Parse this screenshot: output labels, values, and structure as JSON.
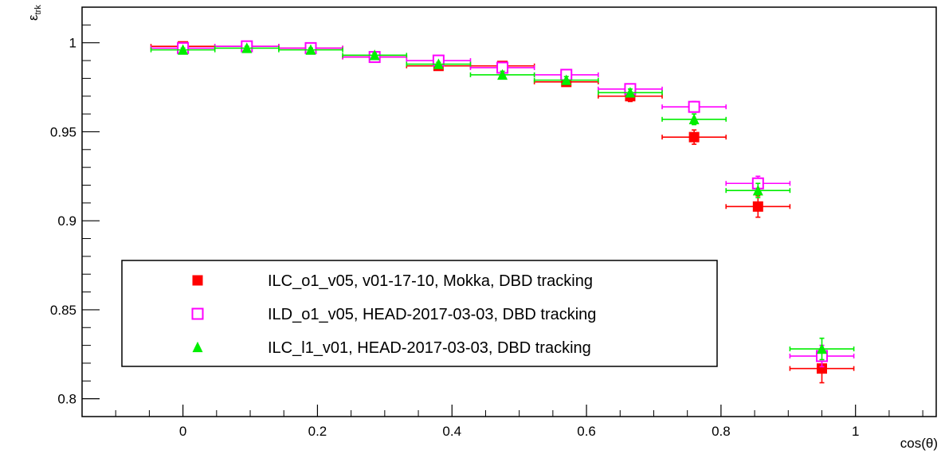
{
  "chart_data": {
    "type": "scatter",
    "title": "",
    "xlabel": "cos(θ)",
    "ylabel": "ε",
    "ylabel_sub": "trk",
    "xlim": [
      -0.15,
      1.12
    ],
    "ylim": [
      0.79,
      1.02
    ],
    "x_ticks": [
      0,
      0.2,
      0.4,
      0.6,
      0.8,
      1
    ],
    "x_tick_labels": [
      "0",
      "0.2",
      "0.4",
      "0.6",
      "0.8",
      "1"
    ],
    "y_ticks": [
      0.8,
      0.85,
      0.9,
      0.95,
      1
    ],
    "y_tick_labels": [
      "0.8",
      "0.85",
      "0.9",
      "0.95",
      "1"
    ],
    "grid": false,
    "legend_position": "bottom-left",
    "error_bars": true,
    "x_half_width": 0.0475,
    "series": [
      {
        "name": "ILC_o1_v05, v01-17-10, Mokka, DBD tracking",
        "marker": "filled-square",
        "color": "#ff0000",
        "x": [
          0,
          0.095,
          0.19,
          0.285,
          0.38,
          0.475,
          0.57,
          0.665,
          0.76,
          0.855,
          0.95
        ],
        "y": [
          0.998,
          0.998,
          0.997,
          0.992,
          0.987,
          0.987,
          0.978,
          0.97,
          0.947,
          0.908,
          0.817
        ],
        "yerr": [
          0.001,
          0.001,
          0.001,
          0.001,
          0.001,
          0.002,
          0.002,
          0.003,
          0.004,
          0.006,
          0.008
        ]
      },
      {
        "name": "ILD_o1_v05, HEAD-2017-03-03, DBD tracking",
        "marker": "open-square",
        "color": "#ff00ff",
        "x": [
          0,
          0.095,
          0.19,
          0.285,
          0.38,
          0.475,
          0.57,
          0.665,
          0.76,
          0.855,
          0.95
        ],
        "y": [
          0.997,
          0.998,
          0.997,
          0.992,
          0.99,
          0.986,
          0.982,
          0.974,
          0.964,
          0.921,
          0.824
        ],
        "yerr": [
          0.001,
          0.001,
          0.001,
          0.001,
          0.001,
          0.002,
          0.002,
          0.002,
          0.003,
          0.004,
          0.006
        ]
      },
      {
        "name": "ILC_l1_v01, HEAD-2017-03-03, DBD tracking",
        "marker": "filled-triangle",
        "color": "#00ee00",
        "x": [
          0,
          0.095,
          0.19,
          0.285,
          0.38,
          0.475,
          0.57,
          0.665,
          0.76,
          0.855,
          0.95
        ],
        "y": [
          0.996,
          0.997,
          0.996,
          0.993,
          0.988,
          0.982,
          0.979,
          0.972,
          0.957,
          0.917,
          0.828
        ],
        "yerr": [
          0.001,
          0.001,
          0.001,
          0.001,
          0.001,
          0.002,
          0.002,
          0.002,
          0.003,
          0.004,
          0.006
        ]
      }
    ]
  }
}
